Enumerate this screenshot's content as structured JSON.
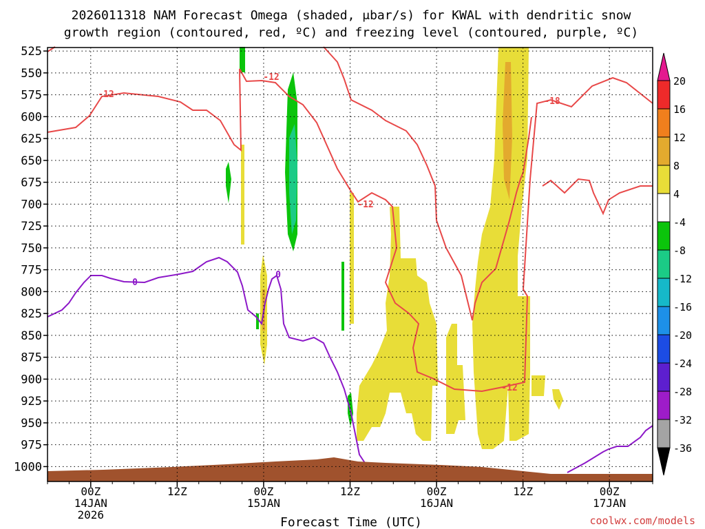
{
  "chart_data": {
    "type": "heatmap",
    "title_line1": "2026011318 NAM Forecast Omega (shaded, μbar/s) for KWAL with dendritic snow",
    "title_line2": "growth region (contoured, red, ºC) and freezing level (contoured, purple, ºC)",
    "xlabel": "Forecast Time (UTC)",
    "ylabel": "",
    "credit": "coolwx.com/models",
    "x_ticks": [
      {
        "hour": 6,
        "label": "00Z",
        "sub1": "14JAN",
        "sub2": "2026"
      },
      {
        "hour": 18,
        "label": "12Z",
        "sub1": "",
        "sub2": ""
      },
      {
        "hour": 30,
        "label": "00Z",
        "sub1": "15JAN",
        "sub2": ""
      },
      {
        "hour": 42,
        "label": "12Z",
        "sub1": "",
        "sub2": ""
      },
      {
        "hour": 54,
        "label": "00Z",
        "sub1": "16JAN",
        "sub2": ""
      },
      {
        "hour": 66,
        "label": "12Z",
        "sub1": "",
        "sub2": ""
      },
      {
        "hour": 78,
        "label": "00Z",
        "sub1": "17JAN",
        "sub2": ""
      }
    ],
    "xlim": [
      0,
      84
    ],
    "pressure_levels": [
      525,
      550,
      575,
      600,
      625,
      650,
      675,
      700,
      725,
      750,
      775,
      800,
      825,
      850,
      875,
      900,
      925,
      950,
      975,
      1000
    ],
    "ylim": [
      1017,
      521
    ],
    "colorbar": {
      "ticks": [
        20,
        16,
        12,
        8,
        4,
        -4,
        -8,
        -12,
        -16,
        -20,
        -24,
        -28,
        -32,
        -36
      ],
      "colors": [
        "#ee2a2a",
        "#f07f1d",
        "#e3aa2e",
        "#e8dd38",
        "#ffffff",
        "#0bc40b",
        "#1bcb86",
        "#16b9c9",
        "#1d90e8",
        "#1c4ce4",
        "#5d1fcf",
        "#9e1cc9",
        "#a4a4a4"
      ],
      "over_color": "#e4198f",
      "under_color": "#000000"
    },
    "freezing_label": "0",
    "dgz_labels": [
      "-12",
      "-12",
      "-12",
      "-12",
      "-18"
    ],
    "dgz_color": "#e84848",
    "freezing_color": "#8c18c8",
    "terrain_color": "#a0522d"
  }
}
